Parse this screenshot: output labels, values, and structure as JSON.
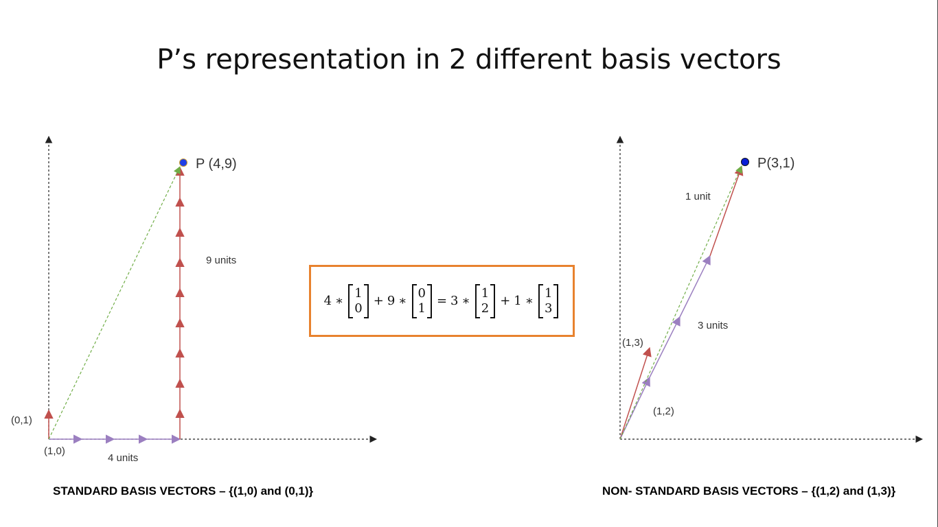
{
  "title": "P’s representation in 2 different basis vectors",
  "colors": {
    "axis": "#222222",
    "red_vector": "#c0504d",
    "purple_vector": "#9b7fc0",
    "green_vector": "#70ad47",
    "point_fill": "#1f3fe6",
    "box_border": "#e8822e"
  },
  "left_diagram": {
    "point_label": "P (4,9)",
    "unit_y_label": "(0,1)",
    "unit_x_label": "(1,0)",
    "x_count_label": "4 units",
    "y_count_label": "9 units",
    "caption": "STANDARD BASIS VECTORS – {(1,0) and (0,1)}"
  },
  "right_diagram": {
    "point_label": "P(3,1)",
    "basis_a_label": "(1,3)",
    "basis_b_label": "(1,2)",
    "a_count_label": "1 unit",
    "b_count_label": "3 units",
    "caption": "NON- STANDARD BASIS VECTORS – {(1,2) and (1,3)}"
  },
  "equation": {
    "terms": [
      {
        "coef": "4",
        "vec": [
          "1",
          "0"
        ]
      },
      {
        "coef": "9",
        "vec": [
          "0",
          "1"
        ]
      },
      {
        "coef": "3",
        "vec": [
          "1",
          "2"
        ]
      },
      {
        "coef": "1",
        "vec": [
          "1",
          "3"
        ]
      }
    ],
    "times": "∗",
    "plus": "+",
    "equals": "="
  }
}
